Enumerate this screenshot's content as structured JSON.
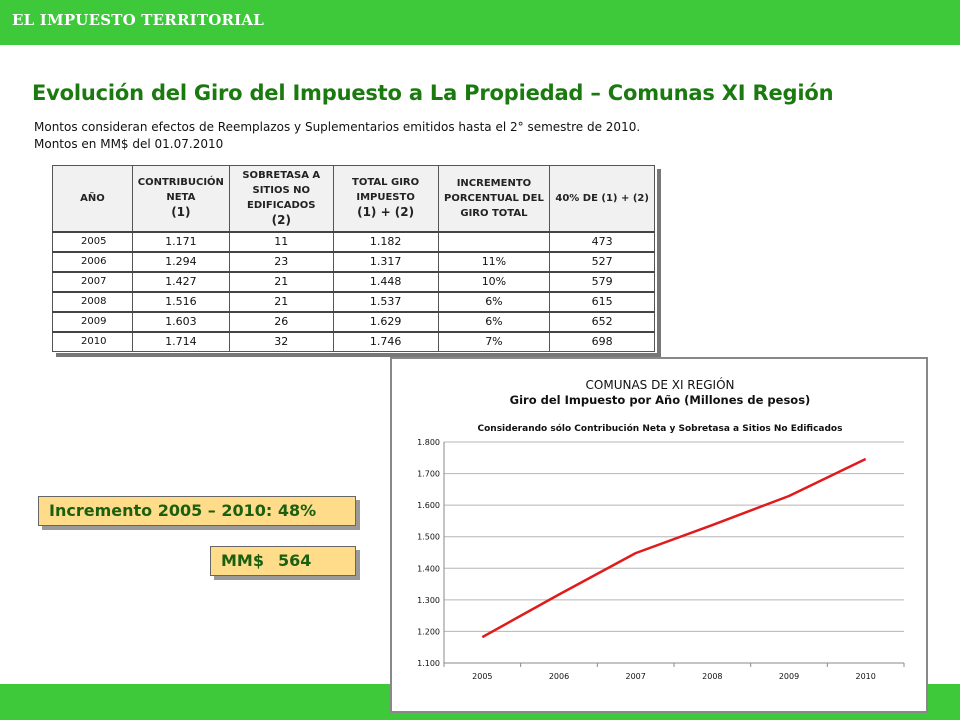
{
  "header": {
    "title": "EL IMPUESTO TERRITORIAL"
  },
  "page": {
    "title": "Evolución del Giro del Impuesto a La Propiedad – Comunas XI Región",
    "note1": "Montos consideran efectos de Reemplazos y Suplementarios emitidos hasta el 2° semestre de 2010.",
    "note2": "Montos en MM$ del 01.07.2010"
  },
  "table": {
    "headers": [
      {
        "line1": "AÑO",
        "line2": ""
      },
      {
        "line1": "CONTRIBUCIÓN NETA",
        "line2": "(1)"
      },
      {
        "line1": "SOBRETASA A SITIOS NO EDIFICADOS",
        "line2": "(2)"
      },
      {
        "line1": "TOTAL GIRO IMPUESTO",
        "line2": "(1) + (2)"
      },
      {
        "line1": "INCREMENTO PORCENTUAL DEL GIRO TOTAL",
        "line2": ""
      },
      {
        "line1": "40% DE (1) + (2)",
        "line2": ""
      }
    ],
    "rows": [
      [
        "2005",
        "1.171",
        "11",
        "1.182",
        "",
        "473"
      ],
      [
        "2006",
        "1.294",
        "23",
        "1.317",
        "11%",
        "527"
      ],
      [
        "2007",
        "1.427",
        "21",
        "1.448",
        "10%",
        "579"
      ],
      [
        "2008",
        "1.516",
        "21",
        "1.537",
        "6%",
        "615"
      ],
      [
        "2009",
        "1.603",
        "26",
        "1.629",
        "6%",
        "652"
      ],
      [
        "2010",
        "1.714",
        "32",
        "1.746",
        "7%",
        "698"
      ]
    ]
  },
  "callouts": {
    "increment": "Incremento 2005 – 2010:  48%",
    "mm_label": "MM$",
    "mm_value": "564"
  },
  "colors": {
    "brand_green": "#3dc93a",
    "title_green": "#1b7a0f",
    "callout_bg": "#ffdc8a",
    "line_red": "#e01b1b"
  },
  "chart_data": {
    "type": "line",
    "title": "COMUNAS DE XI REGIÓN",
    "subtitle": "Giro del Impuesto por Año  (Millones de pesos)",
    "note": "Considerando sólo Contribución Neta y Sobretasa a Sitios No Edificados",
    "categories": [
      "2005",
      "2006",
      "2007",
      "2008",
      "2009",
      "2010"
    ],
    "series": [
      {
        "name": "Total Giro Impuesto",
        "values": [
          1182,
          1317,
          1448,
          1537,
          1629,
          1746
        ]
      }
    ],
    "ylim": [
      1100,
      1800
    ],
    "yticks": [
      1100,
      1200,
      1300,
      1400,
      1500,
      1600,
      1700,
      1800
    ],
    "ytick_labels": [
      "1.100",
      "1.200",
      "1.300",
      "1.400",
      "1.500",
      "1.600",
      "1.700",
      "1.800"
    ],
    "grid": true,
    "xlabel": "",
    "ylabel": ""
  }
}
